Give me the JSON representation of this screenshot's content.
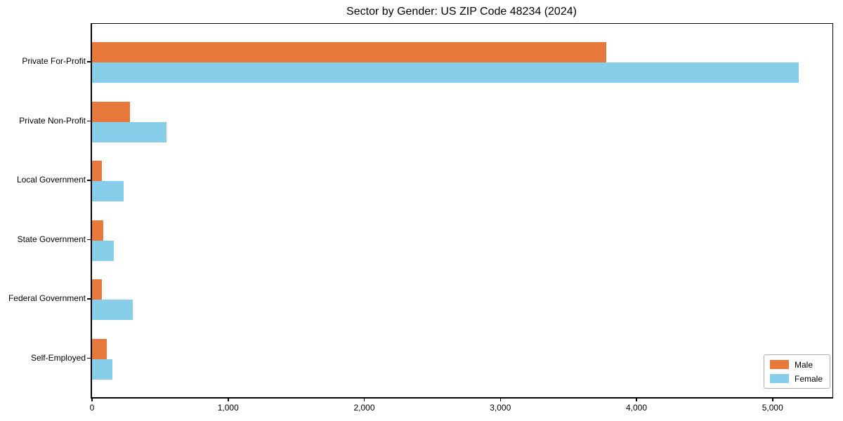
{
  "chart_data": {
    "type": "bar",
    "orientation": "horizontal",
    "title": "Sector by Gender: US ZIP Code 48234 (2024)",
    "categories": [
      "Private For-Profit",
      "Private Non-Profit",
      "Local Government",
      "State Government",
      "Federal Government",
      "Self-Employed"
    ],
    "series": [
      {
        "name": "Male",
        "color": "#e8793d",
        "values": [
          3780,
          280,
          70,
          80,
          70,
          110
        ]
      },
      {
        "name": "Female",
        "color": "#87ceeb",
        "values": [
          5190,
          545,
          230,
          160,
          300,
          150
        ]
      }
    ],
    "xlabel": "",
    "ylabel": "",
    "xlim": [
      0,
      5440
    ],
    "x_ticks": [
      0,
      1000,
      2000,
      3000,
      4000,
      5000
    ],
    "x_tick_labels": [
      "0",
      "1,000",
      "2,000",
      "3,000",
      "4,000",
      "5,000"
    ],
    "grid": false,
    "legend": {
      "position": "lower right",
      "entries": [
        "Male",
        "Female"
      ]
    }
  },
  "colors": {
    "axis": "#000000",
    "background": "#ffffff",
    "male": "#e8793d",
    "female": "#87ceeb"
  }
}
